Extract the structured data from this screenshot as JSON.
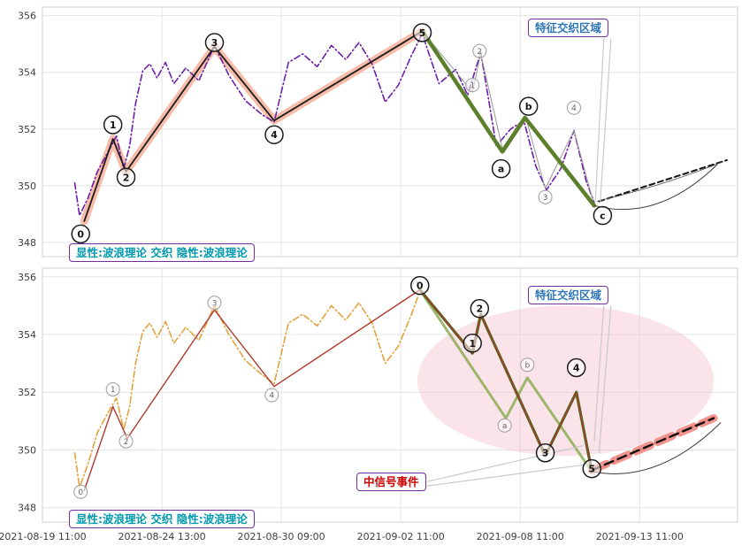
{
  "axes": {
    "x_ticks": [
      "2021-08-19 11:00",
      "2021-08-24 13:00",
      "2021-08-30 09:00",
      "2021-09-02 11:00",
      "2021-09-08 11:00",
      "2021-09-13 11:00"
    ],
    "y_ticks": [
      348,
      350,
      352,
      354,
      356
    ],
    "y_min": 347.5,
    "y_max": 356.3,
    "x_max": 5.82
  },
  "colors": {
    "grid": "#e4e4e4",
    "spine": "#cfcfcf",
    "explicit_casing": "#f4a78e",
    "explicit_line": "#1c1c1c",
    "hidden_purple": "#6d1fa8",
    "implicit_green": "#5b7f2b",
    "hidden_orange": "#e2a33c",
    "explicit_red": "#b03a2e",
    "green_dark": "#3e6b1d",
    "green_light": "#94b05e",
    "signal_pink": "#f0837c",
    "callout_gray": "#c9c9c9",
    "box_border": "#7030a0"
  },
  "chart_data": [
    {
      "type": "line",
      "title": "",
      "footer": "显性:波浪理论 交织 隐性:波浪理论",
      "region_label": "特征交织区域",
      "ylim": [
        347.5,
        356.3
      ],
      "series": [
        {
          "name": "explicit-wave-casing",
          "color": "#f4a78e",
          "width": 9,
          "opacity": 0.75,
          "points": [
            [
              0.35,
              348.75
            ],
            [
              0.59,
              351.65
            ],
            [
              0.7,
              350.5
            ],
            [
              1.44,
              354.9
            ],
            [
              1.94,
              352.3
            ],
            [
              3.18,
              355.45
            ]
          ]
        },
        {
          "name": "hidden-wave-purple",
          "color": "#6d1fa8",
          "width": 1.6,
          "dash": "7 3 1.5 3",
          "points": [
            [
              0.27,
              350.1
            ],
            [
              0.31,
              348.95
            ],
            [
              0.38,
              349.55
            ],
            [
              0.46,
              350.5
            ],
            [
              0.55,
              351.2
            ],
            [
              0.62,
              351.75
            ],
            [
              0.68,
              350.6
            ],
            [
              0.73,
              351.4
            ],
            [
              0.78,
              352.9
            ],
            [
              0.84,
              354.05
            ],
            [
              0.9,
              354.3
            ],
            [
              0.96,
              353.8
            ],
            [
              1.03,
              354.35
            ],
            [
              1.1,
              353.6
            ],
            [
              1.2,
              354.15
            ],
            [
              1.31,
              353.7
            ],
            [
              1.44,
              354.95
            ],
            [
              1.56,
              353.9
            ],
            [
              1.7,
              353.0
            ],
            [
              1.84,
              352.5
            ],
            [
              1.94,
              352.25
            ],
            [
              2.06,
              354.35
            ],
            [
              2.18,
              354.65
            ],
            [
              2.3,
              354.2
            ],
            [
              2.42,
              354.95
            ],
            [
              2.54,
              354.45
            ],
            [
              2.65,
              355.05
            ],
            [
              2.76,
              354.3
            ],
            [
              2.87,
              352.95
            ],
            [
              2.98,
              353.55
            ],
            [
              3.09,
              354.6
            ],
            [
              3.18,
              355.35
            ],
            [
              3.32,
              353.6
            ],
            [
              3.46,
              354.1
            ],
            [
              3.56,
              353.2
            ],
            [
              3.67,
              354.7
            ],
            [
              3.8,
              351.4
            ],
            [
              3.92,
              352.0
            ],
            [
              4.03,
              352.3
            ],
            [
              4.13,
              350.7
            ],
            [
              4.22,
              349.85
            ],
            [
              4.34,
              350.6
            ],
            [
              4.45,
              351.95
            ],
            [
              4.55,
              350.2
            ],
            [
              4.62,
              349.4
            ]
          ]
        },
        {
          "name": "hidden-zigzag-thin",
          "color": "#999999",
          "width": 1,
          "points": [
            [
              3.18,
              355.45
            ],
            [
              3.6,
              353.3
            ],
            [
              3.67,
              354.65
            ],
            [
              3.86,
              351.15
            ],
            [
              4.05,
              352.35
            ],
            [
              4.21,
              349.9
            ],
            [
              4.45,
              351.95
            ],
            [
              4.62,
              349.3
            ]
          ]
        },
        {
          "name": "implicit-abc-green",
          "color": "#5b7f2b",
          "width": 4.5,
          "points": [
            [
              3.18,
              355.45
            ],
            [
              3.85,
              351.2
            ],
            [
              4.04,
              352.4
            ],
            [
              4.62,
              349.3
            ]
          ]
        },
        {
          "name": "explicit-wave-line",
          "color": "#1c1c1c",
          "width": 1.8,
          "points": [
            [
              0.35,
              348.75
            ],
            [
              0.59,
              351.65
            ],
            [
              0.7,
              350.5
            ],
            [
              1.44,
              354.9
            ],
            [
              1.94,
              352.3
            ],
            [
              3.18,
              355.45
            ]
          ]
        },
        {
          "name": "trend-dashed",
          "color": "#111111",
          "width": 2,
          "dash": "6 4",
          "points": [
            [
              4.66,
              349.45
            ],
            [
              5.73,
              350.9
            ]
          ]
        }
      ],
      "curves": [
        {
          "name": "arc-under",
          "from": [
            4.62,
            349.3
          ],
          "ctrl": [
            5.15,
            348.7
          ],
          "to": [
            5.65,
            350.75
          ],
          "color": "#3c3c3c",
          "width": 1
        },
        {
          "name": "arc-companion",
          "from": [
            4.64,
            349.45
          ],
          "ctrl": [
            5.2,
            350.0
          ],
          "to": [
            5.7,
            350.85
          ],
          "color": "#555555",
          "width": 0.8
        }
      ],
      "guide_lines": [
        {
          "from": [
            4.63,
            349.5
          ],
          "to": [
            4.7,
            355.2
          ],
          "color": "#c9c9c9",
          "width": 1.2
        },
        {
          "from": [
            4.67,
            349.4
          ],
          "to": [
            4.76,
            355.2
          ],
          "color": "#c9c9c9",
          "width": 1.2
        }
      ],
      "markers": [
        {
          "label": "0",
          "x": 0.32,
          "y": 348.3,
          "size": "lg"
        },
        {
          "label": "1",
          "x": 0.59,
          "y": 352.15,
          "size": "lg"
        },
        {
          "label": "2",
          "x": 0.7,
          "y": 350.3,
          "size": "lg"
        },
        {
          "label": "3",
          "x": 1.44,
          "y": 355.05,
          "size": "lg"
        },
        {
          "label": "4",
          "x": 1.94,
          "y": 351.8,
          "size": "lg"
        },
        {
          "label": "5",
          "x": 3.18,
          "y": 355.4,
          "size": "lg"
        },
        {
          "label": "a",
          "x": 3.84,
          "y": 350.6,
          "size": "lg"
        },
        {
          "label": "b",
          "x": 4.07,
          "y": 352.8,
          "size": "lg"
        },
        {
          "label": "c",
          "x": 4.69,
          "y": 348.95,
          "size": "lg"
        },
        {
          "label": "1",
          "x": 3.6,
          "y": 353.55,
          "size": "sm"
        },
        {
          "label": "2",
          "x": 3.66,
          "y": 354.75,
          "size": "sm"
        },
        {
          "label": "3",
          "x": 4.21,
          "y": 349.6,
          "size": "sm"
        },
        {
          "label": "4",
          "x": 4.45,
          "y": 352.75,
          "size": "sm"
        }
      ]
    },
    {
      "type": "line",
      "title": "",
      "footer": "显性:波浪理论 交织 隐性:波浪理论",
      "region_label": "特征交织区域",
      "signal_label": "中信号事件",
      "ylim": [
        347.5,
        356.3
      ],
      "ellipse": {
        "cx": 4.38,
        "cy": 352.4,
        "rx": 1.24,
        "ry": 2.6,
        "color": "#f3bccb",
        "opacity": 0.42
      },
      "series": [
        {
          "name": "hidden-wave-orange",
          "color": "#e2a33c",
          "width": 1.6,
          "dash": "7 3 1.5 3",
          "points": [
            [
              0.27,
              349.9
            ],
            [
              0.31,
              348.7
            ],
            [
              0.38,
              349.5
            ],
            [
              0.46,
              350.6
            ],
            [
              0.55,
              351.3
            ],
            [
              0.62,
              351.8
            ],
            [
              0.68,
              350.7
            ],
            [
              0.73,
              351.5
            ],
            [
              0.78,
              353.0
            ],
            [
              0.84,
              354.1
            ],
            [
              0.9,
              354.4
            ],
            [
              0.96,
              353.9
            ],
            [
              1.03,
              354.45
            ],
            [
              1.1,
              353.7
            ],
            [
              1.2,
              354.25
            ],
            [
              1.31,
              353.8
            ],
            [
              1.44,
              355.0
            ],
            [
              1.56,
              354.0
            ],
            [
              1.7,
              353.1
            ],
            [
              1.84,
              352.6
            ],
            [
              1.94,
              352.3
            ],
            [
              2.06,
              354.4
            ],
            [
              2.18,
              354.7
            ],
            [
              2.3,
              354.3
            ],
            [
              2.42,
              355.0
            ],
            [
              2.54,
              354.5
            ],
            [
              2.65,
              355.1
            ],
            [
              2.76,
              354.4
            ],
            [
              2.87,
              353.0
            ],
            [
              2.98,
              353.6
            ],
            [
              3.09,
              354.7
            ],
            [
              3.16,
              355.5
            ]
          ]
        },
        {
          "name": "implicit-ab-green-light",
          "color": "#94b05e",
          "width": 3,
          "opacity": 0.9,
          "points": [
            [
              3.16,
              355.55
            ],
            [
              3.88,
              351.1
            ],
            [
              4.06,
              352.5
            ],
            [
              4.6,
              349.25
            ]
          ]
        },
        {
          "name": "implicit-zigzag-green-dark",
          "color": "#3e6b1d",
          "width": 3.2,
          "points": [
            [
              3.16,
              355.55
            ],
            [
              3.6,
              353.35
            ],
            [
              3.67,
              354.7
            ],
            [
              4.21,
              349.8
            ],
            [
              4.47,
              352.0
            ],
            [
              4.6,
              349.25
            ]
          ]
        },
        {
          "name": "explicit-wave-red",
          "color": "#b03a2e",
          "width": 1.4,
          "points": [
            [
              0.35,
              348.6
            ],
            [
              0.59,
              351.5
            ],
            [
              0.71,
              350.4
            ],
            [
              1.44,
              354.85
            ],
            [
              1.94,
              352.2
            ],
            [
              3.16,
              355.55
            ],
            [
              3.6,
              353.35
            ],
            [
              3.67,
              354.7
            ],
            [
              4.21,
              349.8
            ],
            [
              4.47,
              352.0
            ],
            [
              4.6,
              349.25
            ],
            [
              5.62,
              351.15
            ]
          ]
        },
        {
          "name": "signal-trend-pink",
          "color": "#f0837c",
          "width": 9,
          "opacity": 0.85,
          "dash": "18 9",
          "points": [
            [
              4.6,
              349.3
            ],
            [
              5.62,
              351.1
            ]
          ]
        },
        {
          "name": "signal-trend-dashed",
          "color": "#111111",
          "width": 2.4,
          "dash": "10 6",
          "points": [
            [
              4.6,
              349.3
            ],
            [
              5.62,
              351.1
            ]
          ]
        }
      ],
      "curves": [
        {
          "name": "arc-under",
          "from": [
            4.6,
            349.25
          ],
          "ctrl": [
            5.15,
            348.8
          ],
          "to": [
            5.68,
            350.95
          ],
          "color": "#3c3c3c",
          "width": 1
        }
      ],
      "guide_lines": [
        {
          "from": [
            4.62,
            350.3
          ],
          "to": [
            4.7,
            355.0
          ],
          "color": "#c9c9c9",
          "width": 1.2
        },
        {
          "from": [
            4.66,
            349.9
          ],
          "to": [
            4.76,
            355.0
          ],
          "color": "#c9c9c9",
          "width": 1.2
        },
        {
          "from": [
            3.22,
            348.9
          ],
          "to": [
            4.53,
            350.15
          ],
          "color": "#c9c9c9",
          "width": 1.2
        },
        {
          "from": [
            3.22,
            348.75
          ],
          "to": [
            4.56,
            349.5
          ],
          "color": "#c9c9c9",
          "width": 1.2
        }
      ],
      "markers": [
        {
          "label": "0",
          "x": 0.32,
          "y": 348.55,
          "size": "sm"
        },
        {
          "label": "1",
          "x": 0.59,
          "y": 352.1,
          "size": "sm"
        },
        {
          "label": "2",
          "x": 0.7,
          "y": 350.3,
          "size": "sm"
        },
        {
          "label": "3",
          "x": 1.44,
          "y": 355.1,
          "size": "sm"
        },
        {
          "label": "4",
          "x": 1.92,
          "y": 351.9,
          "size": "sm"
        },
        {
          "label": "a",
          "x": 3.87,
          "y": 350.85,
          "size": "sm"
        },
        {
          "label": "b",
          "x": 4.06,
          "y": 352.95,
          "size": "sm"
        },
        {
          "label": "0",
          "x": 3.16,
          "y": 355.7,
          "size": "lg"
        },
        {
          "label": "1",
          "x": 3.6,
          "y": 353.7,
          "size": "lg"
        },
        {
          "label": "2",
          "x": 3.66,
          "y": 354.9,
          "size": "lg"
        },
        {
          "label": "3",
          "x": 4.21,
          "y": 349.9,
          "size": "lg"
        },
        {
          "label": "4",
          "x": 4.47,
          "y": 352.85,
          "size": "lg"
        },
        {
          "label": "5",
          "x": 4.6,
          "y": 349.35,
          "size": "lg"
        }
      ]
    }
  ]
}
